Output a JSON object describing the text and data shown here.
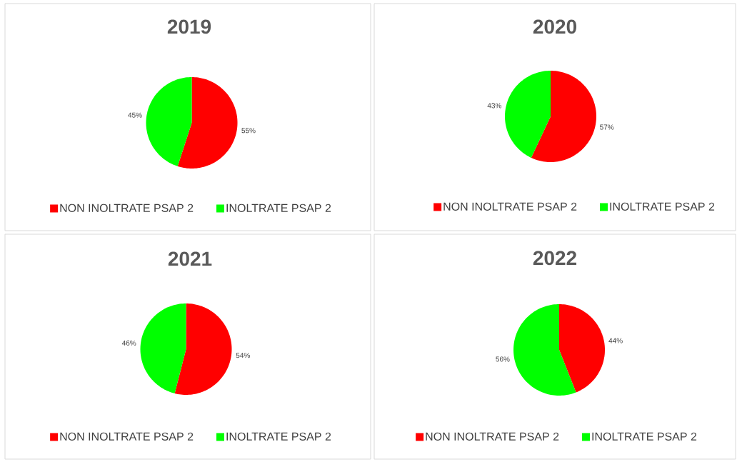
{
  "chart_data": [
    {
      "type": "pie",
      "title": "2019",
      "categories": [
        "NON INOLTRATE PSAP 2",
        "INOLTRATE PSAP 2"
      ],
      "values": [
        55,
        45
      ],
      "colors": [
        "#ff0000",
        "#00ff00"
      ],
      "value_labels": [
        "55%",
        "45%"
      ],
      "legend": "bottom"
    },
    {
      "type": "pie",
      "title": "2020",
      "categories": [
        "NON INOLTRATE PSAP 2",
        "INOLTRATE PSAP 2"
      ],
      "values": [
        57,
        43
      ],
      "colors": [
        "#ff0000",
        "#00ff00"
      ],
      "value_labels": [
        "57%",
        "43%"
      ],
      "legend": "bottom"
    },
    {
      "type": "pie",
      "title": "2021",
      "categories": [
        "NON INOLTRATE PSAP 2",
        "INOLTRATE PSAP 2"
      ],
      "values": [
        54,
        46
      ],
      "colors": [
        "#ff0000",
        "#00ff00"
      ],
      "value_labels": [
        "54%",
        "46%"
      ],
      "legend": "bottom"
    },
    {
      "type": "pie",
      "title": "2022",
      "categories": [
        "NON INOLTRATE PSAP 2",
        "INOLTRATE PSAP 2"
      ],
      "values": [
        44,
        56
      ],
      "colors": [
        "#ff0000",
        "#00ff00"
      ],
      "value_labels": [
        "44%",
        "56%"
      ],
      "legend": "bottom"
    }
  ]
}
